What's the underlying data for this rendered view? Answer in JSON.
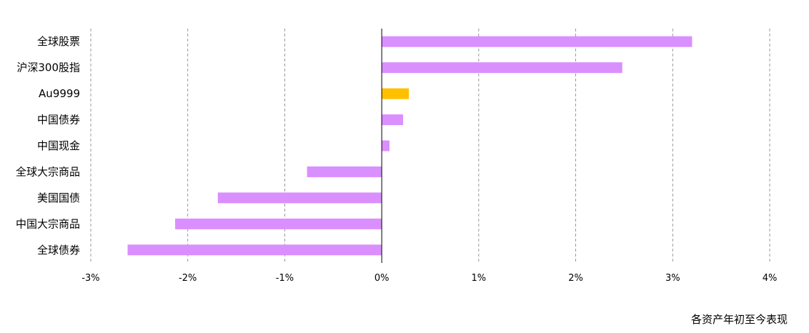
{
  "chart_data": {
    "type": "bar",
    "orientation": "horizontal",
    "categories": [
      "全球股票",
      "沪深300股指",
      "Au9999",
      "中国债券",
      "中国现金",
      "全球大宗商品",
      "美国国债",
      "中国大宗商品",
      "全球债券"
    ],
    "values": [
      3.2,
      2.48,
      0.28,
      0.22,
      0.08,
      -0.77,
      -1.69,
      -2.13,
      -2.62
    ],
    "bar_colors": [
      "#DA8FFF",
      "#DA8FFF",
      "#FFC000",
      "#DA8FFF",
      "#DA8FFF",
      "#DA8FFF",
      "#DA8FFF",
      "#DA8FFF",
      "#DA8FFF"
    ],
    "xlim": [
      -3,
      4
    ],
    "xticks": [
      -3,
      -2,
      -1,
      0,
      1,
      2,
      3,
      4
    ],
    "xtick_labels": [
      "-3%",
      "-2%",
      "-1%",
      "0%",
      "1%",
      "2%",
      "3%",
      "4%"
    ],
    "grid": "vertical dashed",
    "caption": "各资产年初至今表现",
    "colors": {
      "bar": "#DA8FFF",
      "highlight": "#FFC000",
      "grid": "#808080",
      "axis": "#000000"
    }
  }
}
